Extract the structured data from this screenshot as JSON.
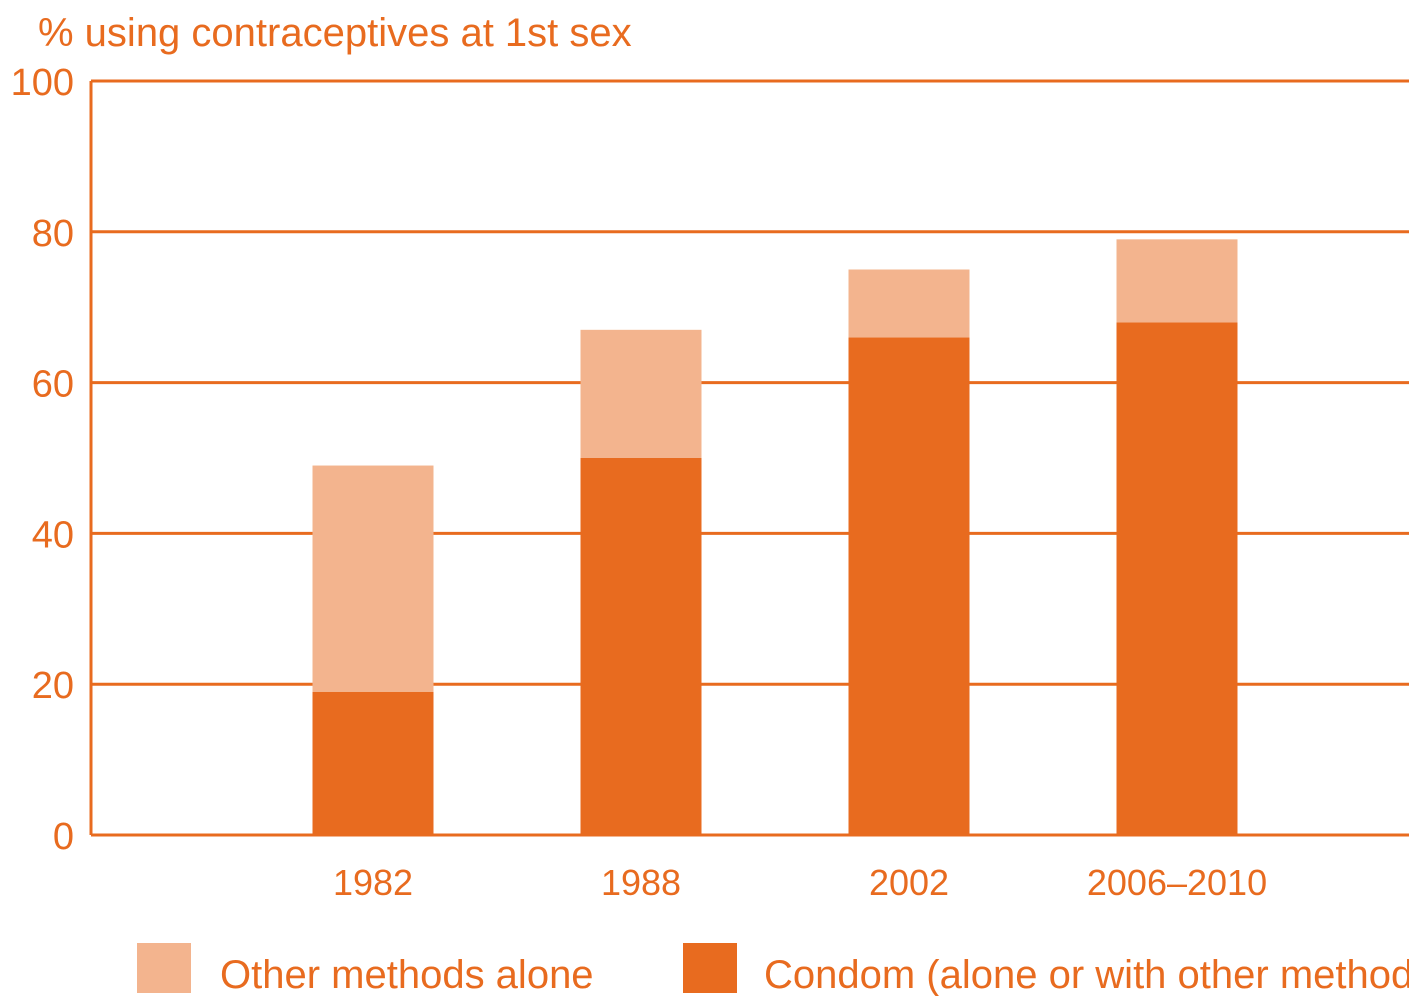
{
  "chart_data": {
    "type": "bar",
    "stacked": true,
    "ylabel": "% using contraceptives at 1st sex",
    "xlabel": "",
    "ylim": [
      0,
      100
    ],
    "yticks": [
      0,
      20,
      40,
      60,
      80,
      100
    ],
    "grid": true,
    "legend_position": "bottom",
    "categories": [
      "1982",
      "1988",
      "2002",
      "2006–2010"
    ],
    "series": [
      {
        "name": "Condom (alone or with other methods)",
        "values": [
          19,
          50,
          66,
          68
        ],
        "color": "#e86b1f"
      },
      {
        "name": "Other methods alone",
        "values": [
          30,
          17,
          9,
          11
        ],
        "color": "#f3b48e"
      }
    ],
    "legend": [
      {
        "label": "Other methods alone",
        "color": "#f3b48e"
      },
      {
        "label": "Condom (alone or with other methods)",
        "color": "#e86b1f"
      }
    ],
    "colors": {
      "axis": "#e86b1f",
      "text": "#e86b1f"
    }
  }
}
